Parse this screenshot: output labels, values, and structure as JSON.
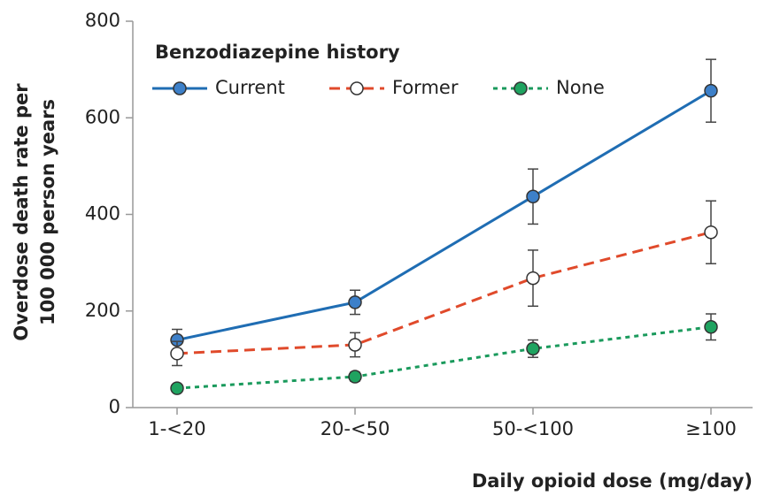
{
  "chart_data": {
    "type": "line",
    "legend_title": "Benzodiazepine history",
    "ylabel": [
      "Overdose death rate per",
      "100 000 person years"
    ],
    "xlabel": "Daily opioid dose (mg/day)",
    "categories": [
      "1-<20",
      "20-<50",
      "50-<100",
      "≥100"
    ],
    "ylim": [
      0,
      800
    ],
    "yticks": [
      0,
      200,
      400,
      600,
      800
    ],
    "legend": "upper left",
    "series": [
      {
        "name": "Current",
        "color": "#1f6db3",
        "marker_fill": "#3d80c9",
        "dash": "solid",
        "values": [
          140,
          218,
          437,
          656
        ],
        "errors": [
          22,
          25,
          57,
          65
        ]
      },
      {
        "name": "Former",
        "color": "#e04a2b",
        "marker_fill": "#ffffff",
        "dash": "dashed",
        "values": [
          112,
          130,
          268,
          363
        ],
        "errors": [
          25,
          25,
          58,
          65
        ]
      },
      {
        "name": "None",
        "color": "#1a9a5c",
        "marker_fill": "#1fa360",
        "dash": "dotted",
        "values": [
          40,
          64,
          122,
          167
        ],
        "errors": [
          6,
          9,
          18,
          27
        ]
      }
    ]
  }
}
